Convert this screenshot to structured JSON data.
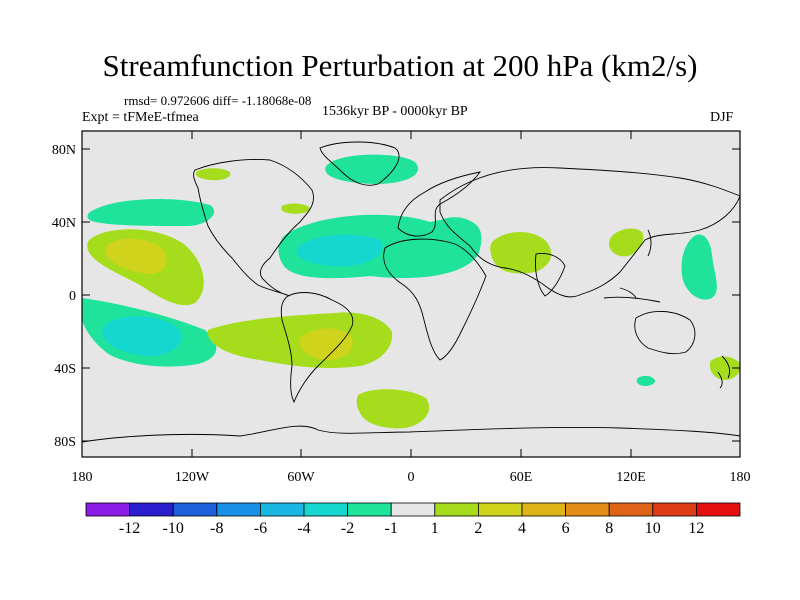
{
  "title": "Streamfunction Perturbation at 200 hPa (km2/s)",
  "rmsd_line": "rmsd= 0.972606 diff= -1.18068e-08",
  "expt_line": "Expt = tFMeE-tfmea",
  "period_line": "1536kyr BP - 0000kyr BP",
  "season": "DJF",
  "map": {
    "lat_ticks": [
      "80N",
      "40N",
      "0",
      "40S",
      "80S"
    ],
    "lon_ticks": [
      "180",
      "120W",
      "60W",
      "0",
      "60E",
      "120E",
      "180"
    ],
    "background_color": "#e6e6e6"
  },
  "colorbar": {
    "colors": [
      "#8c1ce6",
      "#2a1ecf",
      "#1b5fdc",
      "#1890e6",
      "#18b8e3",
      "#16d7cf",
      "#1fe39a",
      "#e6e6e6",
      "#a5dc1c",
      "#cfd31c",
      "#dfb417",
      "#e38c18",
      "#e06418",
      "#df3a16",
      "#e60f0f"
    ],
    "labels": [
      "-12",
      "-10",
      "-8",
      "-6",
      "-4",
      "-2",
      "-1",
      "1",
      "2",
      "4",
      "6",
      "8",
      "10",
      "12"
    ]
  },
  "contour_colors": {
    "neg1": "#1fe39a",
    "neg2": "#16d7cf",
    "neg4": "#18b8e3",
    "pos2": "#a5dc1c",
    "pos4": "#cfd31c"
  }
}
